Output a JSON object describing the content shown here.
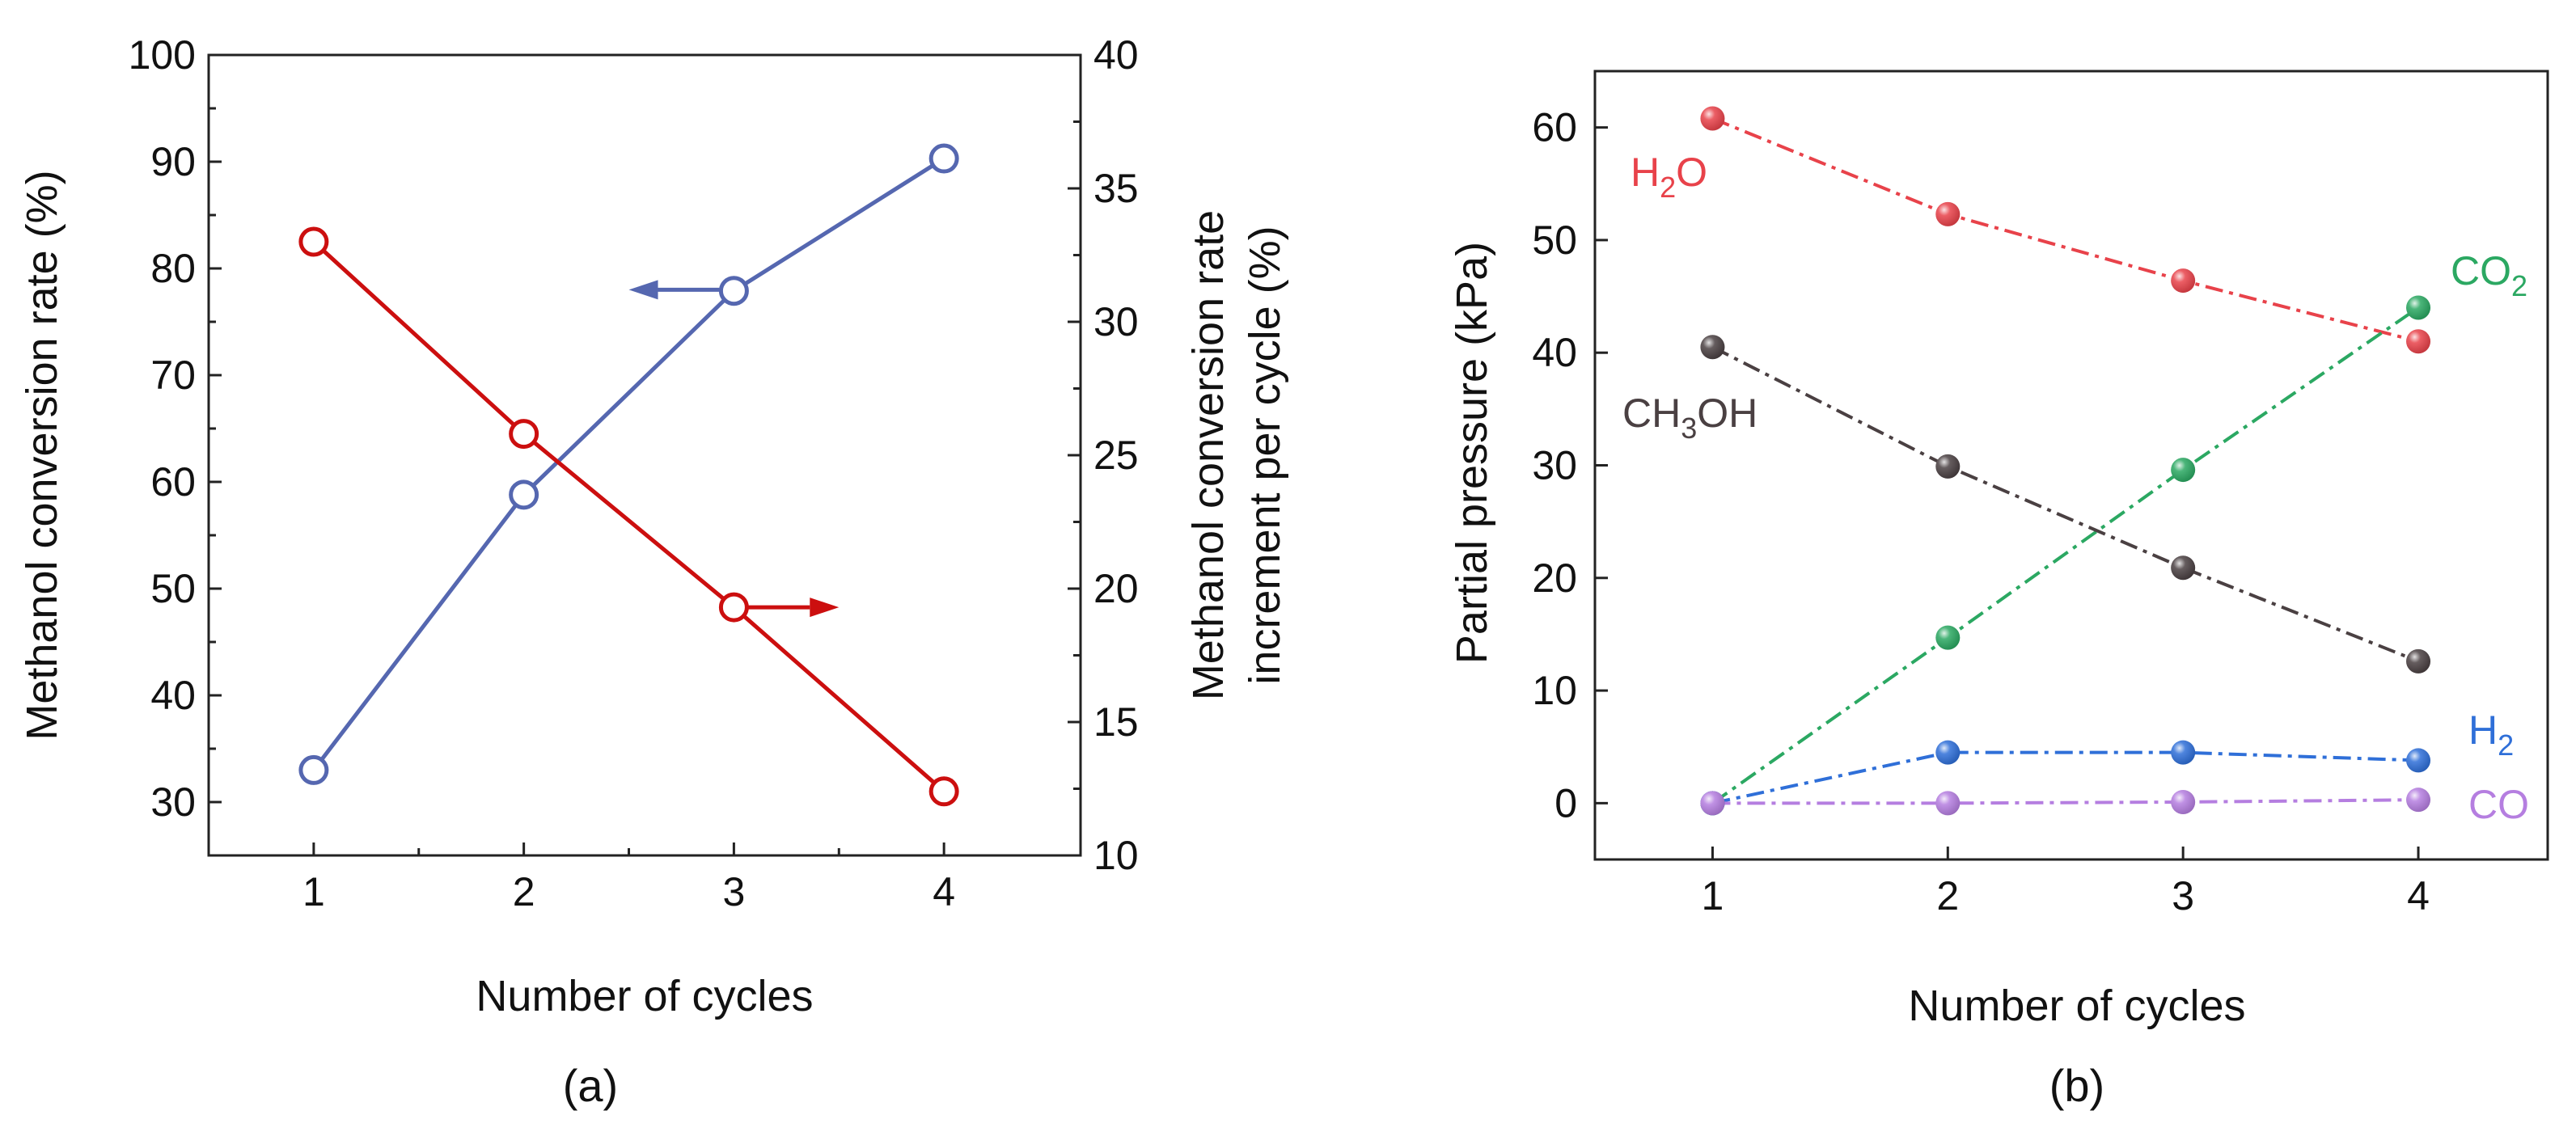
{
  "chart_data": [
    {
      "panel": "(a)",
      "type": "line",
      "xlabel": "Number of cycles",
      "x": [
        1,
        2,
        3,
        4
      ],
      "xlim": [
        0.5,
        4.65
      ],
      "ylabel_left": "Methanol conversion rate (%)",
      "ylim_left": [
        25,
        100
      ],
      "yticks_left": [
        30,
        40,
        50,
        60,
        70,
        80,
        90,
        100
      ],
      "ylabel_right_line1": "Methanol conversion rate",
      "ylabel_right_line2": "increment per cycle (%)",
      "ylim_right": [
        10,
        40
      ],
      "yticks_right": [
        10,
        15,
        20,
        25,
        30,
        35,
        40
      ],
      "grid": false,
      "series": [
        {
          "axis": "left",
          "color": "#5567b0",
          "marker": "open-circle",
          "values": [
            33.0,
            58.8,
            77.9,
            90.3
          ]
        },
        {
          "axis": "right",
          "color": "#cc0f0f",
          "marker": "open-circle",
          "values": [
            33.0,
            25.8,
            19.3,
            12.4
          ]
        }
      ],
      "arrows": [
        {
          "series": 0,
          "direction": "left",
          "x_from": 3,
          "x_to": 2.5,
          "y": 78,
          "axis": "left"
        },
        {
          "series": 1,
          "direction": "right",
          "x_from": 3,
          "x_to": 3.5,
          "y": 19.3,
          "axis": "right"
        }
      ]
    },
    {
      "panel": "(b)",
      "type": "line",
      "xlabel": "Number of cycles",
      "ylabel": "Partial pressure (kPa)",
      "x": [
        1,
        2,
        3,
        4
      ],
      "xlim": [
        0.5,
        4.55
      ],
      "ylim": [
        -5,
        65
      ],
      "yticks": [
        0,
        10,
        20,
        30,
        40,
        50,
        60
      ],
      "grid": false,
      "series": [
        {
          "name_main": "H",
          "name_sub": "2",
          "name_tail": "O",
          "color": "#e8424a",
          "values": [
            60.8,
            52.3,
            46.4,
            41.0
          ]
        },
        {
          "name_main": "CO",
          "name_sub": "2",
          "name_tail": "",
          "color": "#2ba862",
          "values": [
            0.0,
            14.7,
            29.6,
            44.0
          ]
        },
        {
          "name_main": "CH",
          "name_sub": "3",
          "name_tail": "OH",
          "color": "#4a4042",
          "values": [
            40.5,
            29.9,
            20.9,
            12.6
          ]
        },
        {
          "name_main": "H",
          "name_sub": "2",
          "name_tail": "",
          "color": "#2f6fd8",
          "values": [
            0.0,
            4.5,
            4.5,
            3.8
          ]
        },
        {
          "name_main": "CO",
          "name_sub": "",
          "name_tail": "",
          "color": "#b57ee0",
          "values": [
            0.0,
            0.0,
            0.1,
            0.3
          ]
        }
      ]
    }
  ]
}
